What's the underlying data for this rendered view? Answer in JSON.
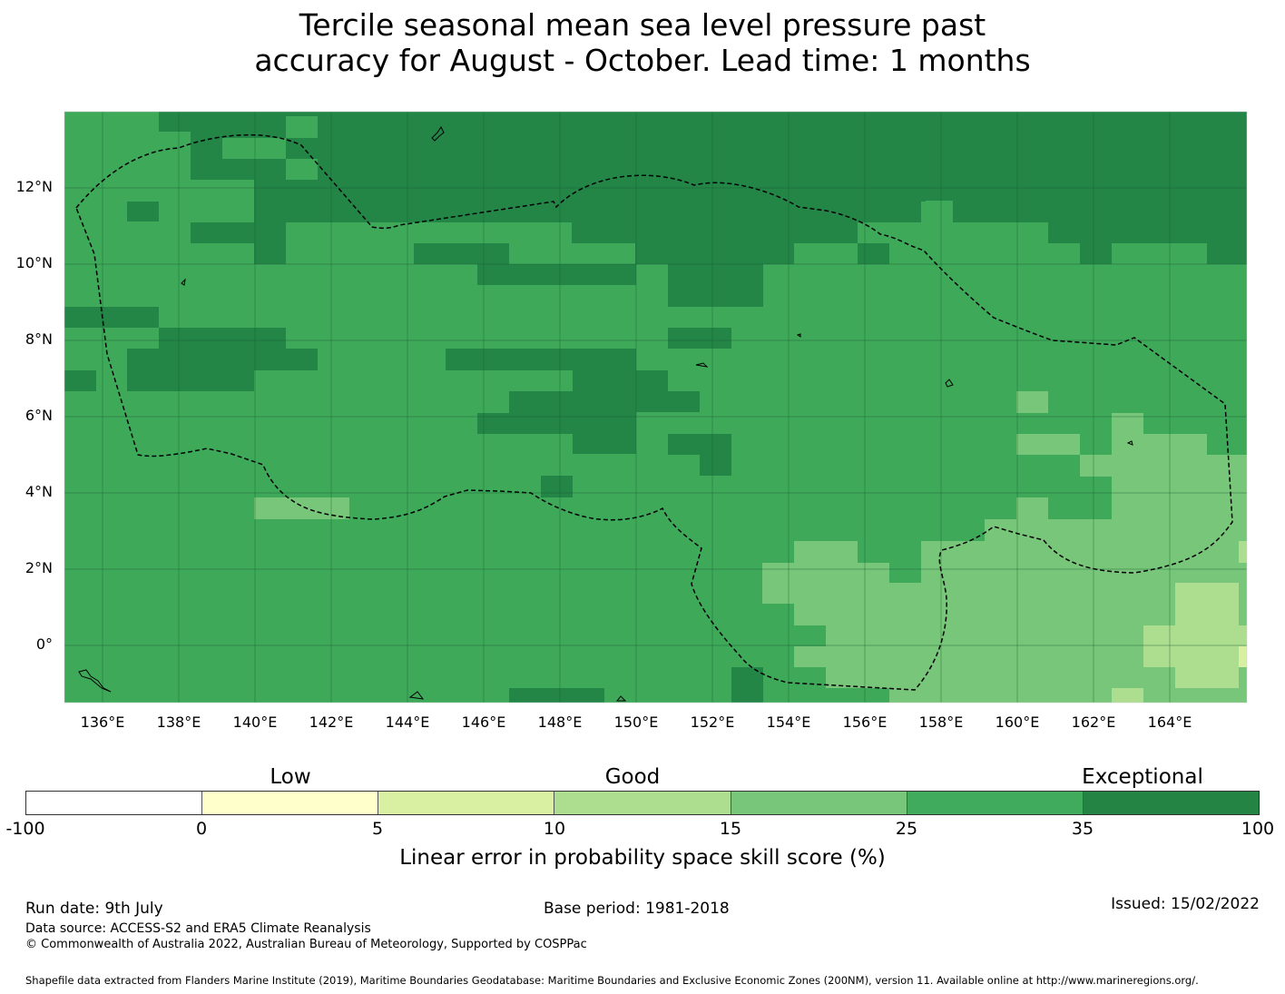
{
  "title": {
    "line1": "Tercile seasonal mean sea level pressure past",
    "line2": "accuracy for August - October. Lead time: 1 months"
  },
  "map": {
    "lat_labels": [
      "12°N",
      "10°N",
      "8°N",
      "6°N",
      "4°N",
      "2°N",
      "0°"
    ],
    "lon_labels": [
      "136°E",
      "138°E",
      "140°E",
      "142°E",
      "144°E",
      "146°E",
      "148°E",
      "150°E",
      "152°E",
      "154°E",
      "156°E",
      "158°E",
      "160°E",
      "162°E",
      "164°E"
    ],
    "colors": {
      "band_35_100": "#238647",
      "band_25_35": "#3fa95a",
      "band_15_25": "#78c679",
      "band_10_15": "#addd8e",
      "ocean_outline": "#000000"
    }
  },
  "colorbar": {
    "categories": [
      "Low",
      "Good",
      "Exceptional"
    ],
    "ticks": [
      "-100",
      "0",
      "5",
      "10",
      "15",
      "25",
      "35",
      "100"
    ],
    "colors": [
      "#ffffff",
      "#ffffcc",
      "#d9f0a3",
      "#addd8e",
      "#78c679",
      "#41ab5d",
      "#238443"
    ],
    "label": "Linear error in probability space skill score (%)"
  },
  "footer": {
    "run_date": "Run date: 9th July",
    "base_period": "Base period: 1981-2018",
    "issued": "Issued: 15/02/2022",
    "data_source": "Data source: ACCESS-S2 and ERA5 Climate Reanalysis",
    "copyright": "© Commonwealth of Australia 2022, Australian Bureau of Meteorology, Supported by COSPPac",
    "shapefile": "Shapefile data extracted from Flanders Marine Institute (2019), Maritime Boundaries Geodatabase: Maritime Boundaries and Exclusive Economic Zones (200NM), version 11. Available online at http://www.marineregions.org/."
  }
}
